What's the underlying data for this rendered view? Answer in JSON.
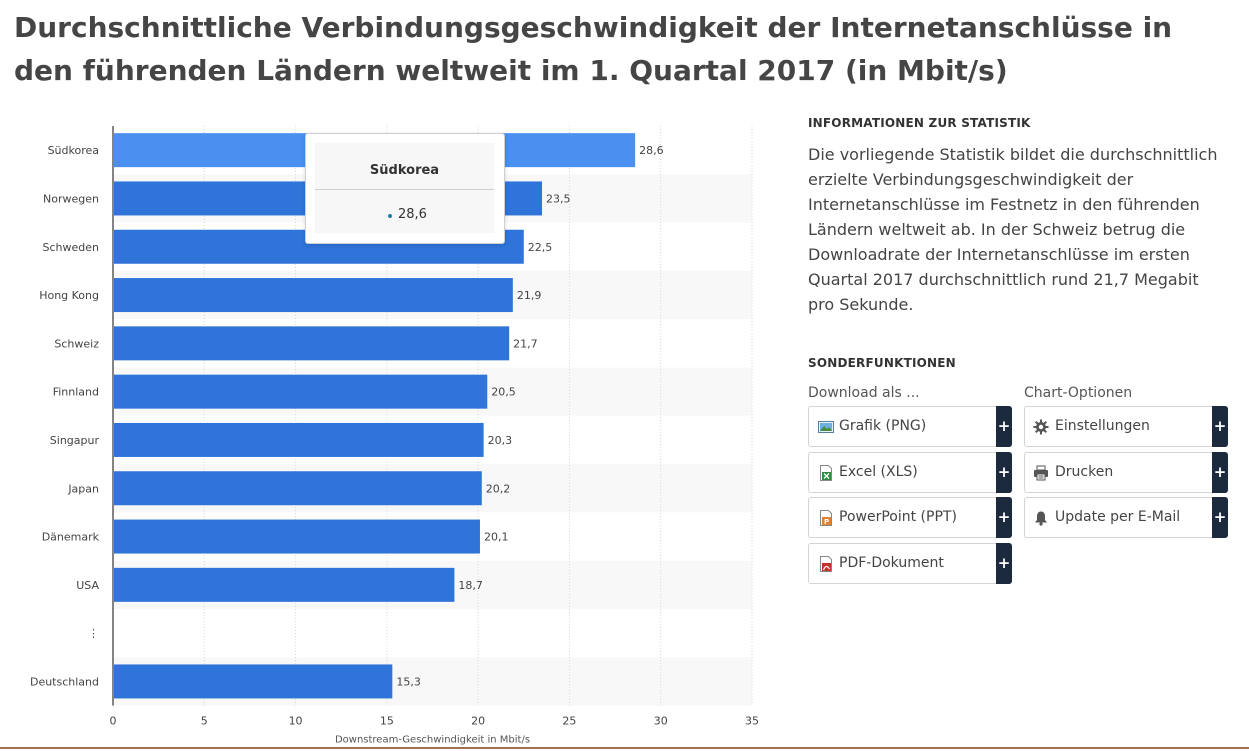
{
  "page": {
    "title": "Durchschnittliche Verbindungsgeschwindigkeit der Internetanschlüsse in den führenden Ländern weltweit im 1. Quartal 2017 (in Mbit/s)"
  },
  "chart_data": {
    "type": "bar",
    "orientation": "horizontal",
    "categories": [
      "Südkorea",
      "Norwegen",
      "Schweden",
      "Hong Kong",
      "Schweiz",
      "Finnland",
      "Singapur",
      "Japan",
      "Dänemark",
      "USA",
      "⋮",
      "Deutschland"
    ],
    "values": [
      28.6,
      23.5,
      22.5,
      21.9,
      21.7,
      20.5,
      20.3,
      20.2,
      20.1,
      18.7,
      null,
      15.3
    ],
    "value_labels": [
      "28,6",
      "23,5",
      "22,5",
      "21,9",
      "21,7",
      "20,5",
      "20,3",
      "20,2",
      "20,1",
      "18,7",
      "",
      "15,3"
    ],
    "xlabel": "Downstream-Geschwindigkeit in Mbit/s",
    "xlim": [
      0,
      35
    ],
    "xticks": [
      0,
      5,
      10,
      15,
      20,
      25,
      30,
      35
    ],
    "grid": true,
    "legend": "none",
    "highlighted_index": 0,
    "colors": {
      "bar": "#2f74d9",
      "bar_highlight": "#4990f0",
      "stripe": "#f8f8f8",
      "grid": "#d8d8d8"
    }
  },
  "tooltip": {
    "title": "Südkorea",
    "value": "28,6",
    "dot_color": "#1f7ea1"
  },
  "info": {
    "heading": "INFORMATIONEN ZUR STATISTIK",
    "text": "Die vorliegende Statistik bildet die durchschnittlich erzielte Verbindungsgeschwindigkeit der Internetanschlüsse im Festnetz in den führenden Ländern weltweit ab. In der Schweiz betrug die Downloadrate der Internetanschlüsse im ersten Quartal 2017 durchschnittlich rund 21,7 Megabit pro Sekunde."
  },
  "features": {
    "heading": "SONDERFUNKTIONEN",
    "download_label": "Download als ...",
    "options_label": "Chart-Optionen",
    "download_buttons": [
      {
        "label": "Grafik (PNG)",
        "icon": "image-file-icon"
      },
      {
        "label": "Excel (XLS)",
        "icon": "excel-file-icon"
      },
      {
        "label": "PowerPoint (PPT)",
        "icon": "powerpoint-file-icon"
      },
      {
        "label": "PDF-Dokument",
        "icon": "pdf-file-icon"
      }
    ],
    "option_buttons": [
      {
        "label": "Einstellungen",
        "icon": "gear-icon"
      },
      {
        "label": "Drucken",
        "icon": "printer-icon"
      },
      {
        "label": "Update per E-Mail",
        "icon": "bell-icon"
      }
    ],
    "plus": "+"
  }
}
